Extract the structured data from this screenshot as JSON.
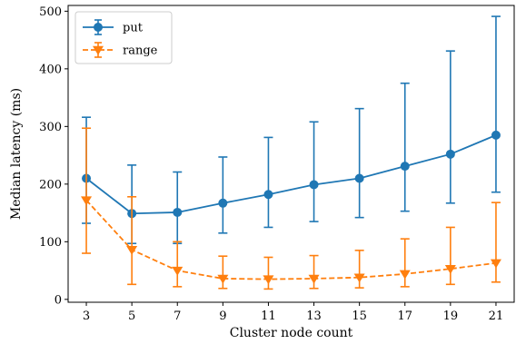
{
  "chart_data": {
    "type": "line",
    "xlabel": "Cluster node count",
    "ylabel": "Median latency (ms)",
    "xlim": [
      2.2,
      21.8
    ],
    "ylim": [
      -5,
      510
    ],
    "legend_position": "top-left",
    "grid": false,
    "x_ticks": [
      "3",
      "5",
      "7",
      "9",
      "11",
      "13",
      "15",
      "17",
      "19",
      "21"
    ],
    "y_ticks": [
      "0",
      "100",
      "200",
      "300",
      "400",
      "500"
    ],
    "x": [
      3,
      5,
      7,
      9,
      11,
      13,
      15,
      17,
      19,
      21
    ],
    "series": [
      {
        "name": "put",
        "color": "#1f77b4",
        "linestyle": "solid",
        "marker": "circle",
        "values": [
          210,
          149,
          151,
          167,
          182,
          199,
          210,
          231,
          252,
          285
        ],
        "err_low": [
          132,
          97,
          97,
          115,
          125,
          135,
          142,
          153,
          167,
          186
        ],
        "err_high": [
          316,
          233,
          221,
          247,
          281,
          308,
          331,
          375,
          431,
          491
        ]
      },
      {
        "name": "range",
        "color": "#ff7f0e",
        "linestyle": "dashed",
        "marker": "triangle-down",
        "values": [
          172,
          86,
          50,
          36,
          35,
          36,
          38,
          44,
          53,
          63
        ],
        "err_low": [
          80,
          26,
          22,
          19,
          18,
          19,
          20,
          22,
          26,
          30
        ],
        "err_high": [
          297,
          178,
          100,
          75,
          73,
          76,
          85,
          105,
          125,
          168
        ]
      }
    ]
  }
}
